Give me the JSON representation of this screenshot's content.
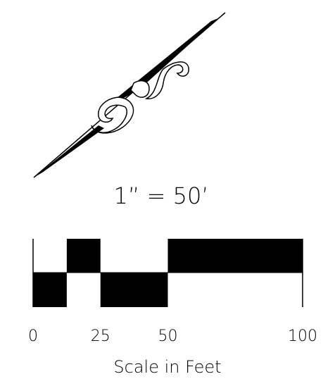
{
  "scale": {
    "ratio_label": "1” = 50’",
    "ticks": [
      0,
      25,
      50,
      100
    ],
    "label": "Scale in Feet"
  }
}
